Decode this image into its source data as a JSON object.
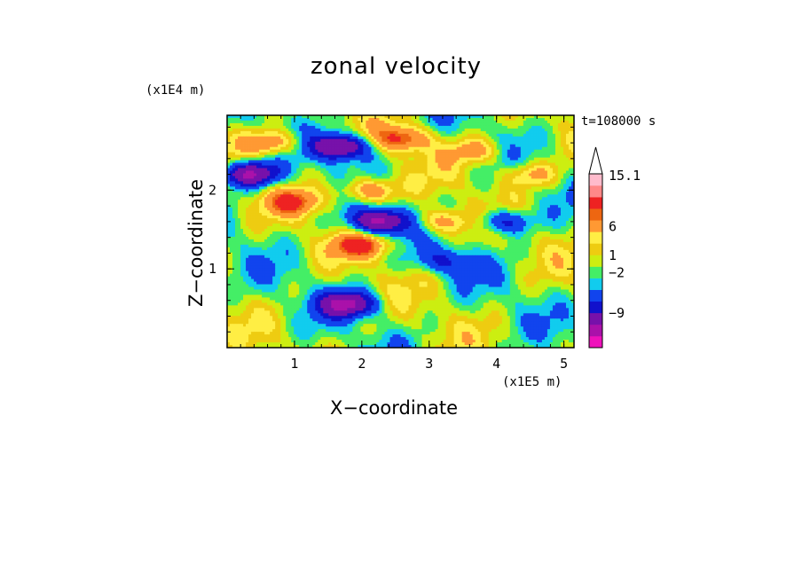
{
  "chart_data": {
    "type": "heatmap",
    "title": "zonal velocity",
    "xlabel": "X−coordinate",
    "ylabel": "Z−coordinate",
    "x_scale_note": "(x1E5 m)",
    "y_scale_note": "(x1E4 m)",
    "time_label": "t=108000 s",
    "xlim": [
      0,
      5.15
    ],
    "ylim": [
      0,
      2.95
    ],
    "x_ticks": [
      "1",
      "2",
      "3",
      "4",
      "5"
    ],
    "y_ticks": [
      "1",
      "2"
    ],
    "colorbar": {
      "tick_labels": [
        "15.1",
        "6",
        "1",
        "−2",
        "−9"
      ],
      "tick_values": [
        15.1,
        6,
        1,
        -2,
        -9
      ],
      "colors": [
        "#ee11bb",
        "#aa11aa",
        "#7711aa",
        "#1111cc",
        "#1144ee",
        "#11ccee",
        "#44ee66",
        "#ccee11",
        "#eecc11",
        "#ffee44",
        "#ff9933",
        "#ee6611",
        "#ee2222",
        "#ff8888",
        "#ffbbcc"
      ]
    },
    "features": [
      {
        "x": 0.35,
        "z": 2.2,
        "v": -10
      },
      {
        "x": 0.65,
        "z": 2.6,
        "v": 6
      },
      {
        "x": 1.7,
        "z": 2.55,
        "v": -10
      },
      {
        "x": 2.25,
        "z": 1.6,
        "v": -10
      },
      {
        "x": 2.1,
        "z": 2.0,
        "v": 6
      },
      {
        "x": 2.0,
        "z": 1.3,
        "v": 6
      },
      {
        "x": 1.8,
        "z": 0.55,
        "v": -9
      },
      {
        "x": 3.2,
        "z": 1.6,
        "v": 5
      },
      {
        "x": 2.6,
        "z": 2.65,
        "v": 6
      },
      {
        "x": 4.1,
        "z": 1.6,
        "v": -6
      },
      {
        "x": 4.5,
        "z": 2.2,
        "v": 4
      },
      {
        "x": 3.2,
        "z": 1.1,
        "v": -4
      },
      {
        "x": 1.0,
        "z": 1.85,
        "v": 5
      },
      {
        "x": 3.7,
        "z": 2.5,
        "v": 4
      }
    ]
  }
}
